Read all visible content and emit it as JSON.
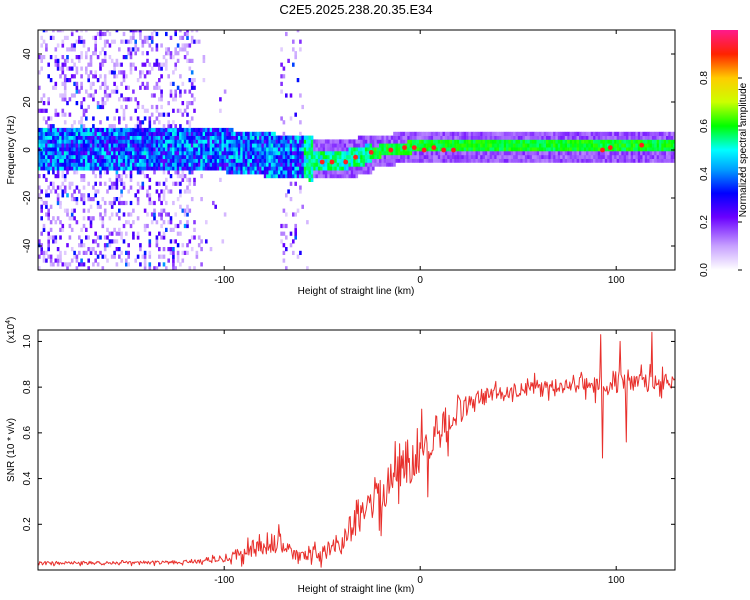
{
  "title": "C2E5.2025.238.20.35.E34",
  "colors": {
    "snr_line": "#e8302c",
    "ridge": "#e8302c",
    "axis": "#000000"
  },
  "chart_data": [
    {
      "type": "heatmap",
      "name": "spectrogram",
      "xlabel": "Height of straight line (km)",
      "ylabel": "Frequency (Hz)",
      "xlim": [
        -195,
        130
      ],
      "ylim": [
        -50,
        50
      ],
      "x_ticks": [
        -100,
        0,
        100
      ],
      "x_tick_labels": [
        "-100",
        "0",
        "100"
      ],
      "y_ticks": [
        -40,
        -20,
        0,
        20,
        40
      ],
      "y_tick_labels": [
        "-40",
        "-20",
        "0",
        "20",
        "40"
      ],
      "colorbar": {
        "label": "Normalized spectral amplitude",
        "range": [
          0,
          1
        ],
        "ticks": [
          0.0,
          0.2,
          0.4,
          0.6,
          0.8
        ],
        "tick_labels": [
          "0.0",
          "0.2",
          "0.4",
          "0.6",
          "0.8"
        ]
      },
      "center_line": {
        "description": "dominant frequency track",
        "x": [
          -195,
          -130,
          -110,
          -90,
          -75,
          -60,
          -50,
          -40,
          -30,
          -20,
          -10,
          0,
          20,
          40,
          80,
          100,
          130
        ],
        "freq": [
          0,
          0,
          0,
          -2,
          -3,
          -4,
          -5,
          -5,
          -3,
          -1,
          0,
          1,
          1,
          1,
          1,
          1,
          1
        ]
      },
      "peak_markers": [
        {
          "x": -50,
          "freq": -5
        },
        {
          "x": -45,
          "freq": -5
        },
        {
          "x": -38,
          "freq": -5
        },
        {
          "x": -33,
          "freq": -3
        },
        {
          "x": -25,
          "freq": -1
        },
        {
          "x": -15,
          "freq": 0
        },
        {
          "x": -8,
          "freq": 1
        },
        {
          "x": -3,
          "freq": 1
        },
        {
          "x": 2,
          "freq": 0
        },
        {
          "x": 7,
          "freq": 1
        },
        {
          "x": 12,
          "freq": 0
        },
        {
          "x": 17,
          "freq": 0
        },
        {
          "x": 93,
          "freq": 0
        },
        {
          "x": 97,
          "freq": 1
        },
        {
          "x": 113,
          "freq": 2
        }
      ]
    },
    {
      "type": "line",
      "name": "snr",
      "xlabel": "Height of straight line (km)",
      "ylabel": "SNR (10 * v/v)",
      "multiplier_label": "(x10",
      "multiplier_exp": "4",
      "xlim": [
        -195,
        130
      ],
      "ylim": [
        0,
        1.05
      ],
      "x_ticks": [
        -100,
        0,
        100
      ],
      "x_tick_labels": [
        "-100",
        "0",
        "100"
      ],
      "y_ticks": [
        0.2,
        0.4,
        0.6,
        0.8,
        1.0
      ],
      "y_tick_labels": [
        "0.2",
        "0.4",
        "0.6",
        "0.8",
        "1.0"
      ],
      "envelope": {
        "x": [
          -195,
          -150,
          -120,
          -100,
          -90,
          -80,
          -75,
          -70,
          -65,
          -60,
          -50,
          -40,
          -30,
          -20,
          -10,
          0,
          10,
          20,
          30,
          40,
          60,
          80,
          100,
          110,
          120,
          130
        ],
        "mean": [
          0.03,
          0.03,
          0.035,
          0.05,
          0.08,
          0.1,
          0.12,
          0.1,
          0.07,
          0.06,
          0.07,
          0.12,
          0.25,
          0.35,
          0.45,
          0.53,
          0.6,
          0.7,
          0.75,
          0.78,
          0.8,
          0.81,
          0.82,
          0.81,
          0.83,
          0.82
        ],
        "noise": [
          0.01,
          0.01,
          0.01,
          0.02,
          0.04,
          0.06,
          0.09,
          0.06,
          0.03,
          0.03,
          0.04,
          0.07,
          0.1,
          0.12,
          0.14,
          0.14,
          0.12,
          0.08,
          0.05,
          0.04,
          0.04,
          0.04,
          0.07,
          0.06,
          0.05,
          0.04
        ]
      },
      "spikes": [
        {
          "x": -20,
          "y": 0.15
        },
        {
          "x": -5,
          "y": 0.38
        },
        {
          "x": 4,
          "y": 0.32
        },
        {
          "x": 92,
          "y": 1.03
        },
        {
          "x": 93,
          "y": 0.49
        },
        {
          "x": 102,
          "y": 1.0
        },
        {
          "x": 105,
          "y": 0.56
        },
        {
          "x": 118,
          "y": 1.04
        },
        {
          "x": 118,
          "y": 0.53
        }
      ]
    }
  ]
}
